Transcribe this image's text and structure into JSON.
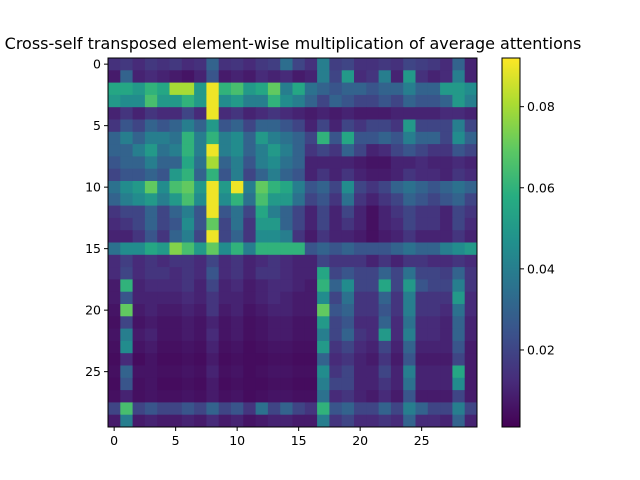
{
  "chart_data": {
    "type": "heatmap",
    "title": "Cross-self transposed element-wise multiplication of average attentions",
    "xlabel": "",
    "ylabel": "",
    "rows": 30,
    "cols": 30,
    "x_ticks": [
      0,
      5,
      10,
      15,
      20,
      25
    ],
    "y_ticks": [
      0,
      5,
      10,
      15,
      20,
      25
    ],
    "colormap": "viridis",
    "colorbar": {
      "range": [
        0.001,
        0.092
      ],
      "ticks": [
        0.02,
        0.04,
        0.06,
        0.08
      ],
      "tick_labels": [
        "0.02",
        "0.04",
        "0.06",
        "0.08"
      ]
    },
    "grid": false,
    "values": [
      [
        0.014,
        0.016,
        0.012,
        0.016,
        0.014,
        0.016,
        0.012,
        0.014,
        0.03,
        0.014,
        0.015,
        0.012,
        0.016,
        0.018,
        0.034,
        0.02,
        0.014,
        0.04,
        0.018,
        0.02,
        0.014,
        0.014,
        0.016,
        0.014,
        0.02,
        0.018,
        0.016,
        0.012,
        0.03,
        0.01
      ],
      [
        0.008,
        0.03,
        0.01,
        0.012,
        0.01,
        0.008,
        0.006,
        0.01,
        0.025,
        0.008,
        0.01,
        0.008,
        0.012,
        0.01,
        0.012,
        0.008,
        0.01,
        0.04,
        0.02,
        0.05,
        0.012,
        0.015,
        0.04,
        0.01,
        0.05,
        0.014,
        0.01,
        0.012,
        0.04,
        0.01
      ],
      [
        0.055,
        0.055,
        0.05,
        0.06,
        0.055,
        0.08,
        0.08,
        0.05,
        0.09,
        0.06,
        0.065,
        0.05,
        0.055,
        0.07,
        0.04,
        0.055,
        0.035,
        0.03,
        0.025,
        0.03,
        0.03,
        0.025,
        0.03,
        0.03,
        0.04,
        0.03,
        0.03,
        0.05,
        0.05,
        0.045
      ],
      [
        0.05,
        0.045,
        0.045,
        0.065,
        0.05,
        0.05,
        0.06,
        0.05,
        0.09,
        0.045,
        0.05,
        0.04,
        0.04,
        0.06,
        0.045,
        0.04,
        0.03,
        0.02,
        0.03,
        0.025,
        0.02,
        0.02,
        0.025,
        0.02,
        0.03,
        0.025,
        0.025,
        0.03,
        0.05,
        0.04
      ],
      [
        0.01,
        0.015,
        0.01,
        0.015,
        0.012,
        0.012,
        0.02,
        0.012,
        0.09,
        0.012,
        0.015,
        0.01,
        0.012,
        0.015,
        0.012,
        0.01,
        0.008,
        0.01,
        0.008,
        0.01,
        0.008,
        0.008,
        0.008,
        0.01,
        0.01,
        0.01,
        0.01,
        0.012,
        0.012,
        0.01
      ],
      [
        0.015,
        0.025,
        0.02,
        0.03,
        0.025,
        0.03,
        0.04,
        0.03,
        0.05,
        0.025,
        0.03,
        0.02,
        0.03,
        0.03,
        0.025,
        0.02,
        0.01,
        0.02,
        0.01,
        0.02,
        0.015,
        0.02,
        0.02,
        0.015,
        0.05,
        0.02,
        0.02,
        0.02,
        0.04,
        0.02
      ],
      [
        0.03,
        0.04,
        0.03,
        0.04,
        0.04,
        0.035,
        0.06,
        0.04,
        0.06,
        0.04,
        0.045,
        0.03,
        0.05,
        0.04,
        0.035,
        0.03,
        0.02,
        0.06,
        0.025,
        0.055,
        0.025,
        0.025,
        0.03,
        0.025,
        0.04,
        0.03,
        0.03,
        0.02,
        0.045,
        0.03
      ],
      [
        0.03,
        0.03,
        0.04,
        0.05,
        0.035,
        0.04,
        0.06,
        0.04,
        0.09,
        0.04,
        0.045,
        0.03,
        0.04,
        0.05,
        0.04,
        0.03,
        0.015,
        0.02,
        0.015,
        0.03,
        0.02,
        0.01,
        0.012,
        0.02,
        0.025,
        0.02,
        0.015,
        0.015,
        0.025,
        0.02
      ],
      [
        0.025,
        0.03,
        0.03,
        0.04,
        0.03,
        0.03,
        0.055,
        0.035,
        0.08,
        0.03,
        0.04,
        0.025,
        0.04,
        0.045,
        0.035,
        0.03,
        0.01,
        0.01,
        0.01,
        0.01,
        0.008,
        0.006,
        0.006,
        0.01,
        0.01,
        0.012,
        0.01,
        0.01,
        0.012,
        0.01
      ],
      [
        0.02,
        0.025,
        0.025,
        0.03,
        0.025,
        0.05,
        0.06,
        0.03,
        0.06,
        0.025,
        0.04,
        0.02,
        0.03,
        0.04,
        0.03,
        0.025,
        0.01,
        0.015,
        0.01,
        0.015,
        0.01,
        0.008,
        0.008,
        0.01,
        0.015,
        0.012,
        0.012,
        0.01,
        0.015,
        0.012
      ],
      [
        0.035,
        0.045,
        0.05,
        0.07,
        0.045,
        0.065,
        0.07,
        0.05,
        0.09,
        0.05,
        0.09,
        0.04,
        0.07,
        0.06,
        0.055,
        0.04,
        0.025,
        0.03,
        0.02,
        0.045,
        0.02,
        0.015,
        0.02,
        0.03,
        0.035,
        0.03,
        0.025,
        0.03,
        0.035,
        0.03
      ],
      [
        0.03,
        0.04,
        0.045,
        0.05,
        0.04,
        0.05,
        0.065,
        0.045,
        0.09,
        0.045,
        0.06,
        0.035,
        0.065,
        0.05,
        0.05,
        0.035,
        0.02,
        0.025,
        0.015,
        0.035,
        0.015,
        0.01,
        0.015,
        0.02,
        0.03,
        0.025,
        0.02,
        0.025,
        0.03,
        0.02
      ],
      [
        0.015,
        0.02,
        0.02,
        0.03,
        0.02,
        0.03,
        0.04,
        0.025,
        0.09,
        0.025,
        0.035,
        0.02,
        0.055,
        0.04,
        0.03,
        0.02,
        0.01,
        0.02,
        0.01,
        0.02,
        0.01,
        0.005,
        0.01,
        0.015,
        0.02,
        0.015,
        0.015,
        0.01,
        0.02,
        0.015
      ],
      [
        0.012,
        0.015,
        0.02,
        0.03,
        0.02,
        0.025,
        0.045,
        0.025,
        0.07,
        0.02,
        0.035,
        0.015,
        0.05,
        0.05,
        0.03,
        0.02,
        0.01,
        0.02,
        0.01,
        0.015,
        0.01,
        0.005,
        0.01,
        0.012,
        0.02,
        0.015,
        0.015,
        0.01,
        0.02,
        0.012
      ],
      [
        0.01,
        0.01,
        0.015,
        0.025,
        0.015,
        0.03,
        0.04,
        0.02,
        0.09,
        0.02,
        0.03,
        0.015,
        0.045,
        0.045,
        0.04,
        0.015,
        0.008,
        0.015,
        0.01,
        0.01,
        0.008,
        0.005,
        0.008,
        0.01,
        0.015,
        0.01,
        0.01,
        0.01,
        0.015,
        0.01
      ],
      [
        0.035,
        0.045,
        0.045,
        0.055,
        0.05,
        0.075,
        0.065,
        0.05,
        0.07,
        0.045,
        0.06,
        0.04,
        0.06,
        0.06,
        0.06,
        0.06,
        0.025,
        0.03,
        0.025,
        0.03,
        0.025,
        0.025,
        0.025,
        0.03,
        0.035,
        0.03,
        0.03,
        0.04,
        0.045,
        0.05
      ],
      [
        0.012,
        0.018,
        0.012,
        0.015,
        0.012,
        0.015,
        0.015,
        0.012,
        0.02,
        0.012,
        0.015,
        0.01,
        0.012,
        0.015,
        0.012,
        0.01,
        0.01,
        0.02,
        0.015,
        0.015,
        0.015,
        0.01,
        0.015,
        0.01,
        0.015,
        0.015,
        0.012,
        0.012,
        0.015,
        0.012
      ],
      [
        0.012,
        0.02,
        0.012,
        0.015,
        0.015,
        0.012,
        0.015,
        0.012,
        0.025,
        0.012,
        0.015,
        0.01,
        0.015,
        0.015,
        0.012,
        0.01,
        0.01,
        0.055,
        0.02,
        0.025,
        0.02,
        0.02,
        0.03,
        0.02,
        0.035,
        0.02,
        0.02,
        0.018,
        0.03,
        0.015
      ],
      [
        0.008,
        0.06,
        0.01,
        0.012,
        0.012,
        0.012,
        0.015,
        0.01,
        0.02,
        0.01,
        0.012,
        0.008,
        0.01,
        0.012,
        0.012,
        0.01,
        0.008,
        0.06,
        0.03,
        0.045,
        0.02,
        0.02,
        0.055,
        0.02,
        0.05,
        0.025,
        0.02,
        0.02,
        0.04,
        0.015
      ],
      [
        0.008,
        0.025,
        0.01,
        0.01,
        0.01,
        0.01,
        0.012,
        0.01,
        0.015,
        0.01,
        0.01,
        0.008,
        0.01,
        0.012,
        0.01,
        0.008,
        0.008,
        0.045,
        0.02,
        0.035,
        0.015,
        0.015,
        0.03,
        0.015,
        0.04,
        0.015,
        0.015,
        0.015,
        0.05,
        0.012
      ],
      [
        0.006,
        0.07,
        0.008,
        0.01,
        0.008,
        0.008,
        0.01,
        0.008,
        0.015,
        0.008,
        0.01,
        0.006,
        0.008,
        0.01,
        0.01,
        0.008,
        0.008,
        0.07,
        0.025,
        0.03,
        0.015,
        0.015,
        0.025,
        0.015,
        0.04,
        0.015,
        0.015,
        0.012,
        0.035,
        0.012
      ],
      [
        0.005,
        0.02,
        0.006,
        0.008,
        0.006,
        0.006,
        0.008,
        0.006,
        0.01,
        0.006,
        0.008,
        0.005,
        0.006,
        0.008,
        0.008,
        0.006,
        0.006,
        0.05,
        0.02,
        0.025,
        0.012,
        0.012,
        0.03,
        0.012,
        0.035,
        0.012,
        0.012,
        0.01,
        0.03,
        0.01
      ],
      [
        0.006,
        0.04,
        0.008,
        0.01,
        0.006,
        0.006,
        0.008,
        0.006,
        0.012,
        0.006,
        0.008,
        0.005,
        0.006,
        0.008,
        0.008,
        0.006,
        0.006,
        0.04,
        0.02,
        0.03,
        0.015,
        0.012,
        0.05,
        0.012,
        0.04,
        0.012,
        0.012,
        0.01,
        0.03,
        0.01
      ],
      [
        0.005,
        0.045,
        0.006,
        0.008,
        0.005,
        0.005,
        0.006,
        0.005,
        0.01,
        0.005,
        0.006,
        0.004,
        0.005,
        0.006,
        0.006,
        0.005,
        0.005,
        0.05,
        0.015,
        0.02,
        0.012,
        0.01,
        0.02,
        0.01,
        0.03,
        0.01,
        0.01,
        0.01,
        0.025,
        0.008
      ],
      [
        0.004,
        0.012,
        0.004,
        0.006,
        0.004,
        0.004,
        0.005,
        0.004,
        0.008,
        0.004,
        0.005,
        0.004,
        0.004,
        0.005,
        0.005,
        0.004,
        0.004,
        0.03,
        0.012,
        0.015,
        0.01,
        0.008,
        0.015,
        0.008,
        0.025,
        0.008,
        0.008,
        0.008,
        0.02,
        0.008
      ],
      [
        0.005,
        0.03,
        0.006,
        0.006,
        0.005,
        0.005,
        0.006,
        0.005,
        0.01,
        0.005,
        0.006,
        0.004,
        0.005,
        0.006,
        0.006,
        0.005,
        0.005,
        0.045,
        0.015,
        0.02,
        0.01,
        0.01,
        0.02,
        0.01,
        0.04,
        0.01,
        0.01,
        0.01,
        0.055,
        0.008
      ],
      [
        0.004,
        0.025,
        0.005,
        0.006,
        0.004,
        0.004,
        0.005,
        0.004,
        0.008,
        0.004,
        0.005,
        0.004,
        0.004,
        0.005,
        0.005,
        0.004,
        0.004,
        0.04,
        0.02,
        0.02,
        0.01,
        0.01,
        0.015,
        0.01,
        0.035,
        0.01,
        0.01,
        0.01,
        0.045,
        0.008
      ],
      [
        0.005,
        0.01,
        0.005,
        0.006,
        0.005,
        0.005,
        0.006,
        0.005,
        0.008,
        0.005,
        0.006,
        0.004,
        0.005,
        0.006,
        0.006,
        0.005,
        0.005,
        0.035,
        0.012,
        0.015,
        0.01,
        0.008,
        0.012,
        0.008,
        0.025,
        0.008,
        0.008,
        0.008,
        0.02,
        0.008
      ],
      [
        0.02,
        0.065,
        0.02,
        0.025,
        0.02,
        0.02,
        0.025,
        0.02,
        0.03,
        0.02,
        0.025,
        0.015,
        0.035,
        0.02,
        0.03,
        0.02,
        0.015,
        0.06,
        0.025,
        0.03,
        0.02,
        0.02,
        0.03,
        0.02,
        0.04,
        0.03,
        0.02,
        0.02,
        0.04,
        0.02
      ],
      [
        0.008,
        0.04,
        0.008,
        0.01,
        0.008,
        0.008,
        0.01,
        0.008,
        0.012,
        0.008,
        0.01,
        0.006,
        0.008,
        0.01,
        0.01,
        0.008,
        0.008,
        0.04,
        0.015,
        0.02,
        0.012,
        0.012,
        0.015,
        0.012,
        0.03,
        0.012,
        0.012,
        0.01,
        0.03,
        0.01
      ]
    ]
  }
}
